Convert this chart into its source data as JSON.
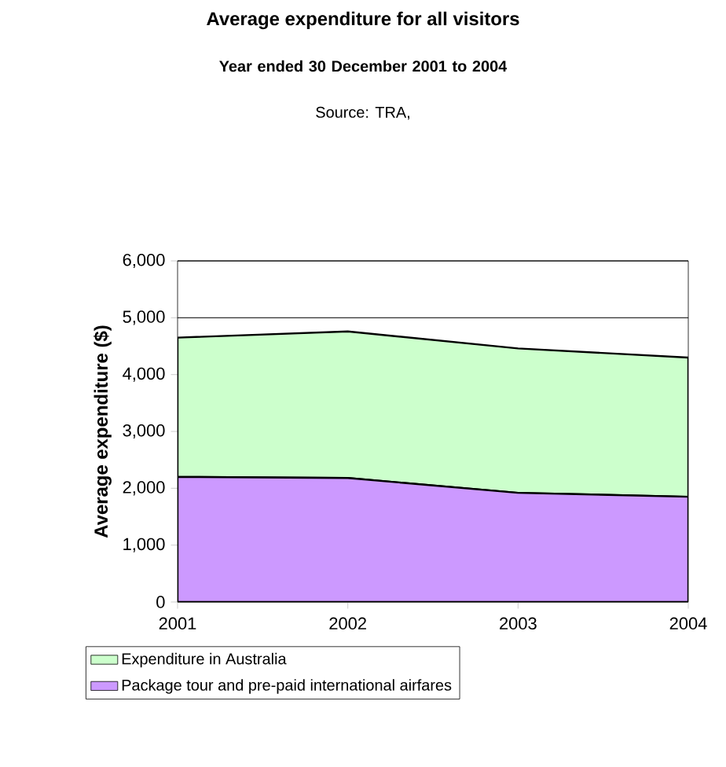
{
  "chart_data": {
    "type": "area",
    "stacked": true,
    "title": "Average expenditure for all visitors",
    "subtitle": "Year ended 30 December 2001 to 2004",
    "annotations": [
      "Source: TRA,"
    ],
    "ylabel": "Average expenditure ($)",
    "categories": [
      "2001",
      "2002",
      "2003",
      "2004"
    ],
    "series": [
      {
        "name": "Package tour and pre-paid international airfares",
        "color": "#cc99ff",
        "values": [
          2200,
          2180,
          1920,
          1850
        ]
      },
      {
        "name": "Expenditure in Australia",
        "color": "#ccffcc",
        "values": [
          2450,
          2580,
          2540,
          2450
        ]
      }
    ],
    "ylim": [
      0,
      6000
    ],
    "yticks": [
      0,
      {
        "value": 1000,
        "label": "1,000"
      },
      {
        "value": 2000,
        "label": "2,000"
      },
      {
        "value": 3000,
        "label": "3,000"
      },
      {
        "value": 4000,
        "label": "4,000"
      },
      {
        "value": 5000,
        "label": "5,000"
      },
      {
        "value": 6000,
        "label": "6,000"
      }
    ],
    "grid": "y",
    "legend": "bottom"
  }
}
